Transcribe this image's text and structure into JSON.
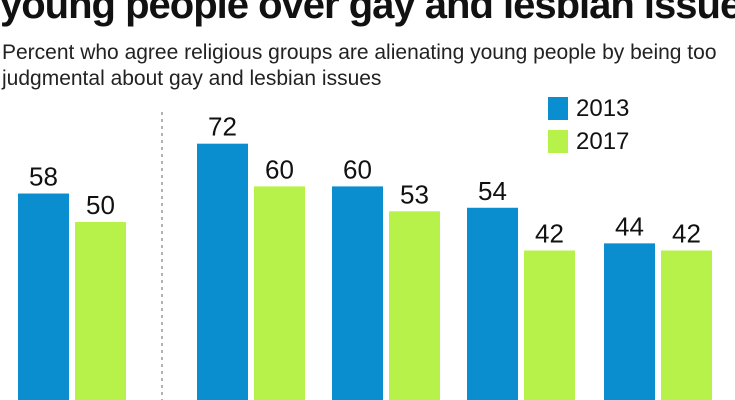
{
  "title": "young people over gay and lesbian issues",
  "subtitle": "Percent who agree religious groups are alienating young people by being too judgmental about gay and lesbian issues",
  "colors": {
    "s2013": "#0a8ecf",
    "s2017": "#b6f24a",
    "divider": "#999999"
  },
  "chart_data": {
    "type": "bar",
    "title": "young people over gay and lesbian issues",
    "subtitle": "Percent who agree religious groups are alienating young people by being too judgmental about gay and lesbian issues",
    "categories": [
      "",
      "",
      "",
      "",
      ""
    ],
    "series": [
      {
        "name": "2013",
        "values": [
          58,
          72,
          60,
          54,
          44
        ]
      },
      {
        "name": "2017",
        "values": [
          50,
          60,
          53,
          42,
          42
        ]
      }
    ],
    "xlabel": "",
    "ylabel": "",
    "ylim": [
      0,
      100
    ],
    "grid": false,
    "legend": "top-right",
    "divider_after_group": 1
  }
}
